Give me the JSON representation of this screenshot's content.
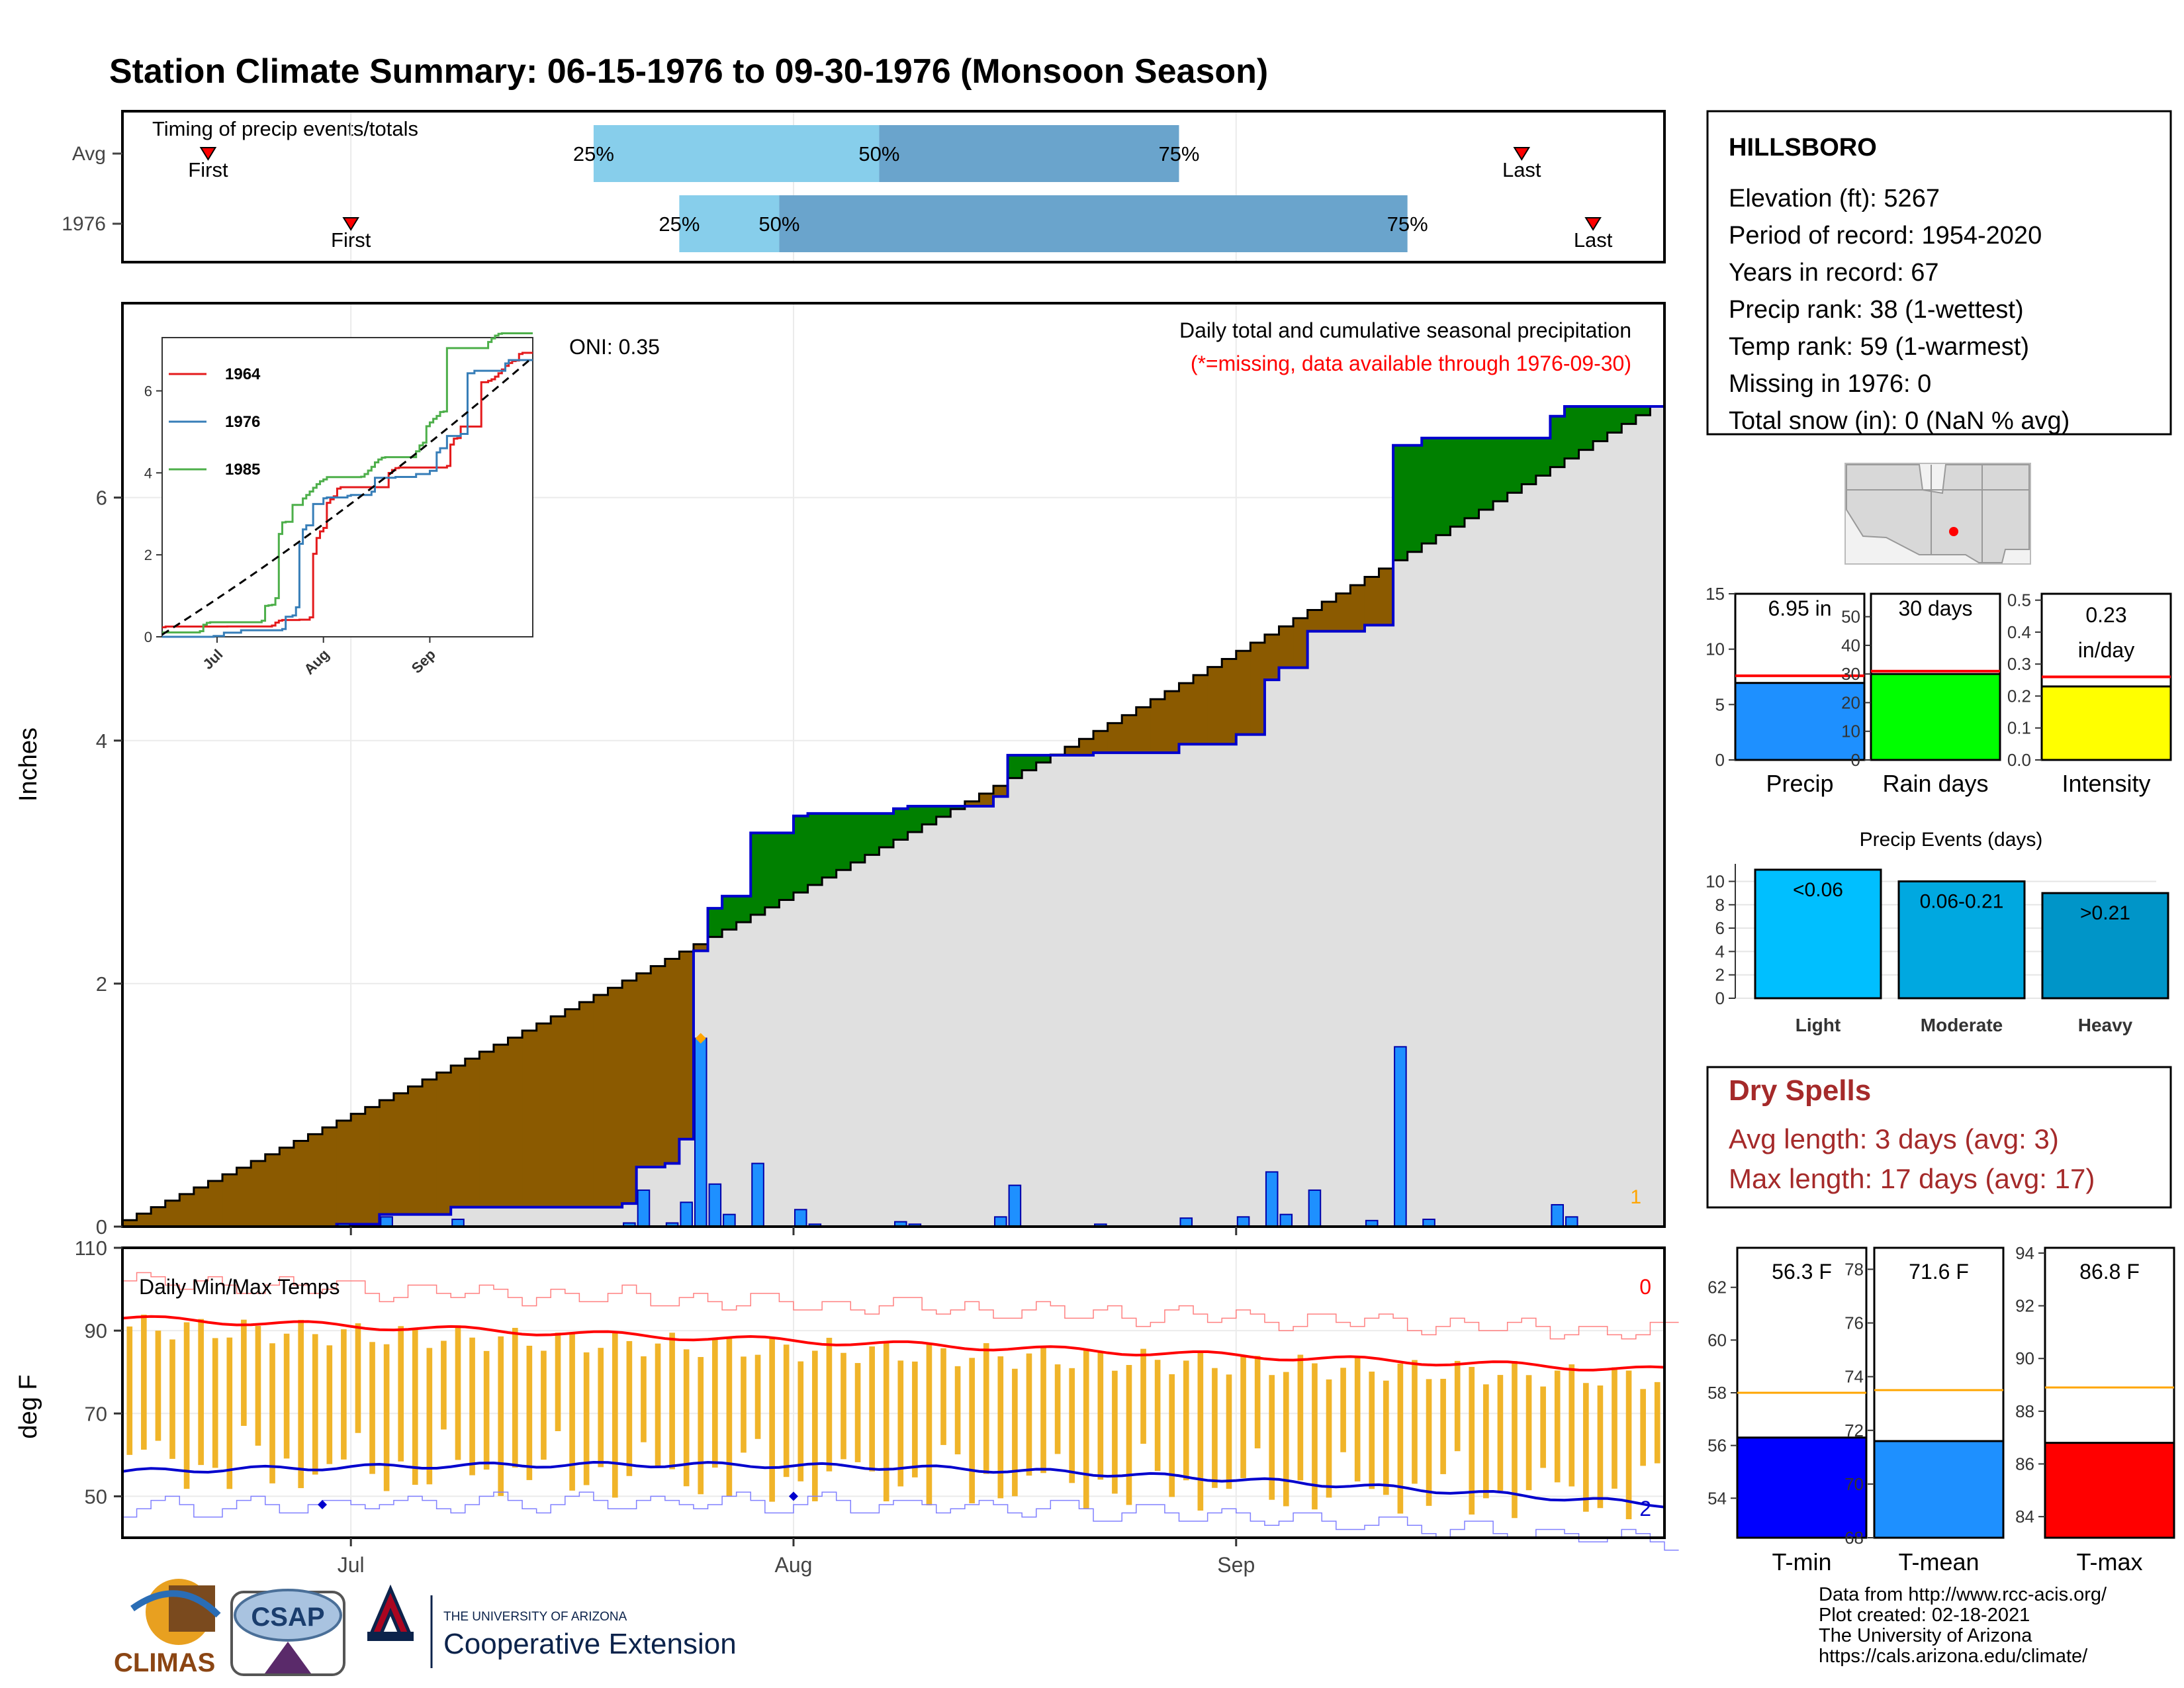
{
  "title": "Station Climate Summary: 06-15-1976 to 09-30-1976 (Monsoon Season)",
  "colors": {
    "title": "#ff0000",
    "light_blue": "#87ceeb",
    "mid_blue": "#6aa4cc",
    "brown": "#8b5a00",
    "green": "#008000",
    "gray_fill": "#e0e0e0",
    "daily_bar": "#1e90ff",
    "temp_bar": "#f0b429",
    "tmax_line": "#ff0000",
    "tmin_line": "#0000cd",
    "dry_spells": "#a52a2a"
  },
  "timing_panel": {
    "title": "Timing of precip events/totals",
    "rows": [
      {
        "label": "Avg",
        "first_label": "First",
        "last_label": "Last",
        "q25": "25%",
        "q50": "50%",
        "q75": "75%",
        "first_day": 6,
        "last_day": 98,
        "p25": 33,
        "p50": 53,
        "p75": 74
      },
      {
        "label": "1976",
        "first_label": "First",
        "last_label": "Last",
        "q25": "25%",
        "q50": "50%",
        "q75": "75%",
        "first_day": 16,
        "last_day": 103,
        "p25": 39,
        "p50": 46,
        "p75": 90
      }
    ]
  },
  "precip_panel": {
    "ylabel": "Inches",
    "yticks": [
      "0",
      "2",
      "4",
      "6"
    ],
    "header": "Daily total and cumulative seasonal precipitation",
    "missing_note": "(*=missing, data available through 1976-09-30)",
    "oni": "ONI: 0.35",
    "missing_count": "1"
  },
  "inset": {
    "yticks": [
      "0",
      "2",
      "4",
      "6"
    ],
    "xticks": [
      "Jul",
      "Aug",
      "Sep"
    ],
    "legend": [
      {
        "name": "1964",
        "color": "#e41a1c"
      },
      {
        "name": "1976",
        "color": "#377eb8"
      },
      {
        "name": "1985",
        "color": "#4daf4a"
      }
    ]
  },
  "temp_panel": {
    "title": "Daily Min/Max Temps",
    "ylabel": "deg F",
    "yticks": [
      "50",
      "70",
      "90",
      "110"
    ],
    "count_top": "0",
    "count_bottom": "2"
  },
  "x_axis": {
    "ticks": [
      "Jul",
      "Aug",
      "Sep"
    ]
  },
  "station_info": {
    "name": "HILLSBORO",
    "lines": [
      "Elevation (ft): 5267",
      "Period of record: 1954-2020",
      "Years in record: 67",
      "Precip rank: 38 (1-wettest)",
      "Temp rank: 59 (1-warmest)",
      "Missing in 1976: 0",
      "Total snow (in): 0 (NaN % avg)"
    ]
  },
  "summary_bars": [
    {
      "label": "Precip",
      "value_label": "6.95 in",
      "value": 6.95,
      "avg": 7.6,
      "ymax": 15,
      "yticks": [
        "0",
        "5",
        "10",
        "15"
      ],
      "color": "#1e90ff"
    },
    {
      "label": "Rain days",
      "value_label": "30 days",
      "value": 30,
      "avg": 31,
      "ymax": 58,
      "yticks": [
        "0",
        "10",
        "20",
        "30",
        "40",
        "50"
      ],
      "color": "#00ff00"
    },
    {
      "label": "Intensity",
      "value_label": "0.23",
      "value_label2": "in/day",
      "value": 0.23,
      "avg": 0.26,
      "ymax": 0.52,
      "yticks": [
        "0.0",
        "0.1",
        "0.2",
        "0.3",
        "0.4",
        "0.5"
      ],
      "color": "#ffff00"
    }
  ],
  "precip_events": {
    "title": "Precip Events (days)",
    "yticks": [
      "0",
      "2",
      "4",
      "6",
      "8",
      "10"
    ],
    "bars": [
      {
        "label": "Light",
        "range": "<0.06",
        "value": 11,
        "color": "#00bfff"
      },
      {
        "label": "Moderate",
        "range": "0.06-0.21",
        "value": 10,
        "color": "#00a8e0"
      },
      {
        "label": "Heavy",
        "range": ">0.21",
        "value": 9,
        "color": "#0095c8"
      }
    ]
  },
  "dry_spells": {
    "title": "Dry Spells",
    "avg_line": "Avg length: 3 days (avg: 3)",
    "max_line": "Max length: 17 days (avg: 17)"
  },
  "temp_bars": [
    {
      "label": "T-min",
      "value_label": "56.3 F",
      "value": 56.3,
      "avg": 58.0,
      "ymin": 52.5,
      "ymax": 63.5,
      "yticks": [
        "54",
        "56",
        "58",
        "60",
        "62"
      ],
      "color": "#0000ff"
    },
    {
      "label": "T-mean",
      "value_label": "71.6 F",
      "value": 71.6,
      "avg": 73.5,
      "ymin": 68.0,
      "ymax": 78.8,
      "yticks": [
        "68",
        "70",
        "72",
        "74",
        "76",
        "78"
      ],
      "color": "#1e90ff"
    },
    {
      "label": "T-max",
      "value_label": "86.8 F",
      "value": 86.8,
      "avg": 88.9,
      "ymin": 83.2,
      "ymax": 94.2,
      "yticks": [
        "84",
        "86",
        "88",
        "90",
        "92",
        "94"
      ],
      "color": "#ff0000"
    }
  ],
  "footer": {
    "lines": [
      "Data from http://www.rcc-acis.org/",
      "Plot created: 02-18-2021",
      "The University of Arizona",
      "https://cals.arizona.edu/climate/"
    ],
    "logo_climas": "CLIMAS",
    "logo_csap": "CSAP",
    "ua_small": "THE UNIVERSITY OF ARIZONA",
    "ua_big": "Cooperative Extension"
  },
  "chart_data": {
    "type": "area",
    "x_start": "1976-06-15",
    "x_end": "1976-09-30",
    "ylim": [
      0,
      7.6
    ],
    "daily_precip": [
      {
        "x": "1976-06-30",
        "y": 0.02
      },
      {
        "x": "1976-07-03",
        "y": 0.08
      },
      {
        "x": "1976-07-08",
        "y": 0.06
      },
      {
        "x": "1976-07-20",
        "y": 0.03
      },
      {
        "x": "1976-07-21",
        "y": 0.3
      },
      {
        "x": "1976-07-23",
        "y": 0.03
      },
      {
        "x": "1976-07-24",
        "y": 0.2
      },
      {
        "x": "1976-07-25",
        "y": 1.55
      },
      {
        "x": "1976-07-26",
        "y": 0.35
      },
      {
        "x": "1976-07-27",
        "y": 0.1
      },
      {
        "x": "1976-07-29",
        "y": 0.52
      },
      {
        "x": "1976-08-01",
        "y": 0.14
      },
      {
        "x": "1976-08-02",
        "y": 0.02
      },
      {
        "x": "1976-08-08",
        "y": 0.04
      },
      {
        "x": "1976-08-09",
        "y": 0.02
      },
      {
        "x": "1976-08-15",
        "y": 0.08
      },
      {
        "x": "1976-08-16",
        "y": 0.34
      },
      {
        "x": "1976-08-22",
        "y": 0.02
      },
      {
        "x": "1976-08-28",
        "y": 0.07
      },
      {
        "x": "1976-09-01",
        "y": 0.08
      },
      {
        "x": "1976-09-03",
        "y": 0.45
      },
      {
        "x": "1976-09-04",
        "y": 0.1
      },
      {
        "x": "1976-09-06",
        "y": 0.3
      },
      {
        "x": "1976-09-10",
        "y": 0.05
      },
      {
        "x": "1976-09-12",
        "y": 1.48
      },
      {
        "x": "1976-09-14",
        "y": 0.06
      },
      {
        "x": "1976-09-23",
        "y": 0.18
      },
      {
        "x": "1976-09-24",
        "y": 0.08
      }
    ],
    "series": [
      {
        "name": "1976",
        "color": "#377eb8"
      },
      {
        "name": "1964",
        "color": "#e41a1c"
      },
      {
        "name": "1985",
        "color": "#4daf4a"
      }
    ],
    "temp_ylim": [
      40,
      110
    ],
    "tmax_avg_start": 93,
    "tmax_avg_end": 80.5,
    "tmin_avg_start": 56,
    "tmin_avg_end": 48
  }
}
